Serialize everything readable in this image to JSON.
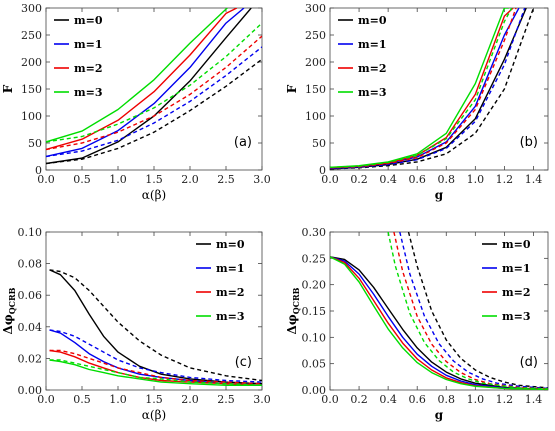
{
  "colors": {
    "m0": "#000000",
    "m1": "#0000ee",
    "m2": "#ee0000",
    "m3": "#00dd00"
  },
  "chart_data": [
    {
      "type": "line",
      "panel_label": "(a)",
      "xlabel": "α(β)",
      "ylabel": "F",
      "xlim": [
        0,
        3
      ],
      "ylim": [
        0,
        300
      ],
      "xticks": [
        "0.0",
        "0.5",
        "1.0",
        "1.5",
        "2.0",
        "2.5",
        "3.0"
      ],
      "yticks": [
        "0",
        "50",
        "100",
        "150",
        "200",
        "250",
        "300"
      ],
      "legend": {
        "placement": "top-left",
        "entries": [
          "m=0",
          "m=1",
          "m=2",
          "m=3"
        ]
      },
      "series": [
        {
          "name": "m=0",
          "dash": false,
          "x": [
            0,
            0.5,
            1.0,
            1.5,
            2.0,
            2.5,
            2.85
          ],
          "y": [
            12,
            22,
            52,
            100,
            165,
            245,
            300
          ]
        },
        {
          "name": "m=1",
          "dash": false,
          "x": [
            0,
            0.5,
            1.0,
            1.5,
            2.0,
            2.5,
            2.75
          ],
          "y": [
            25,
            40,
            73,
            123,
            190,
            272,
            300
          ]
        },
        {
          "name": "m=2",
          "dash": false,
          "x": [
            0,
            0.5,
            1.0,
            1.5,
            2.0,
            2.5,
            2.65
          ],
          "y": [
            38,
            57,
            92,
            145,
            213,
            290,
            300
          ]
        },
        {
          "name": "m=3",
          "dash": false,
          "x": [
            0,
            0.5,
            1.0,
            1.5,
            2.0,
            2.5,
            2.52
          ],
          "y": [
            52,
            72,
            112,
            167,
            235,
            298,
            300
          ]
        },
        {
          "name": "m=0",
          "dash": true,
          "x": [
            0,
            0.5,
            1.0,
            1.5,
            2.0,
            2.5,
            3.0
          ],
          "y": [
            12,
            20,
            40,
            70,
            110,
            155,
            205
          ]
        },
        {
          "name": "m=1",
          "dash": true,
          "x": [
            0,
            0.5,
            1.0,
            1.5,
            2.0,
            2.5,
            3.0
          ],
          "y": [
            25,
            35,
            55,
            87,
            127,
            175,
            228
          ]
        },
        {
          "name": "m=2",
          "dash": true,
          "x": [
            0,
            0.5,
            1.0,
            1.5,
            2.0,
            2.5,
            3.0
          ],
          "y": [
            38,
            50,
            70,
            100,
            140,
            190,
            248
          ]
        },
        {
          "name": "m=3",
          "dash": true,
          "x": [
            0,
            0.5,
            1.0,
            1.5,
            2.0,
            2.5,
            3.0
          ],
          "y": [
            52,
            62,
            85,
            115,
            157,
            210,
            272
          ]
        }
      ]
    },
    {
      "type": "line",
      "panel_label": "(b)",
      "xlabel": "g",
      "ylabel": "F",
      "xlim": [
        0,
        1.5
      ],
      "ylim": [
        0,
        300
      ],
      "xticks": [
        "0.0",
        "0.2",
        "0.4",
        "0.6",
        "0.8",
        "1.0",
        "1.2",
        "1.4"
      ],
      "yticks": [
        "0",
        "50",
        "100",
        "150",
        "200",
        "250",
        "300"
      ],
      "legend": {
        "placement": "top-left",
        "entries": [
          "m=0",
          "m=1",
          "m=2",
          "m=3"
        ]
      },
      "series": [
        {
          "name": "m=0",
          "dash": false,
          "x": [
            0,
            0.2,
            0.4,
            0.6,
            0.8,
            1.0,
            1.2,
            1.35
          ],
          "y": [
            2,
            5,
            10,
            20,
            42,
            95,
            205,
            300
          ]
        },
        {
          "name": "m=1",
          "dash": false,
          "x": [
            0,
            0.2,
            0.4,
            0.6,
            0.8,
            1.0,
            1.2,
            1.3
          ],
          "y": [
            3,
            6,
            12,
            24,
            52,
            118,
            250,
            300
          ]
        },
        {
          "name": "m=2",
          "dash": false,
          "x": [
            0,
            0.2,
            0.4,
            0.6,
            0.8,
            1.0,
            1.2,
            1.26
          ],
          "y": [
            4,
            7,
            13,
            27,
            60,
            140,
            285,
            300
          ]
        },
        {
          "name": "m=3",
          "dash": false,
          "x": [
            0,
            0.2,
            0.4,
            0.6,
            0.8,
            1.0,
            1.2,
            1.23
          ],
          "y": [
            5,
            8,
            15,
            30,
            68,
            160,
            300,
            300
          ]
        },
        {
          "name": "m=0",
          "dash": true,
          "x": [
            0,
            0.2,
            0.4,
            0.6,
            0.8,
            1.0,
            1.2,
            1.4
          ],
          "y": [
            2,
            4,
            8,
            15,
            30,
            68,
            150,
            300
          ]
        },
        {
          "name": "m=1",
          "dash": true,
          "x": [
            0,
            0.2,
            0.4,
            0.6,
            0.8,
            1.0,
            1.2,
            1.34
          ],
          "y": [
            3,
            5,
            10,
            19,
            40,
            90,
            195,
            300
          ]
        },
        {
          "name": "m=2",
          "dash": true,
          "x": [
            0,
            0.2,
            0.4,
            0.6,
            0.8,
            1.0,
            1.2,
            1.28
          ],
          "y": [
            4,
            6,
            12,
            23,
            50,
            112,
            240,
            300
          ]
        },
        {
          "name": "m=3",
          "dash": true,
          "x": [
            0,
            0.2,
            0.4,
            0.6,
            0.8,
            1.0,
            1.2,
            1.25
          ],
          "y": [
            5,
            7,
            14,
            27,
            58,
            130,
            275,
            300
          ]
        }
      ]
    },
    {
      "type": "line",
      "panel_label": "(c)",
      "xlabel": "α(β)",
      "ylabel": "Δφ",
      "ylabel_sub": "QCRB",
      "xlim": [
        0,
        3
      ],
      "ylim": [
        0,
        0.1
      ],
      "xticks": [
        "0.0",
        "0.5",
        "1.0",
        "1.5",
        "2.0",
        "2.5",
        "3.0"
      ],
      "yticks": [
        "0.00",
        "0.02",
        "0.04",
        "0.06",
        "0.08",
        "0.10"
      ],
      "legend": {
        "placement": "top-right",
        "entries": [
          "m=0",
          "m=1",
          "m=2",
          "m=3"
        ]
      },
      "series": [
        {
          "name": "m=0",
          "dash": false,
          "x": [
            0.05,
            0.2,
            0.4,
            0.6,
            0.8,
            1.0,
            1.3,
            1.6,
            2.0,
            2.5,
            3.0
          ],
          "y": [
            0.076,
            0.073,
            0.063,
            0.048,
            0.034,
            0.024,
            0.015,
            0.01,
            0.007,
            0.005,
            0.004
          ]
        },
        {
          "name": "m=1",
          "dash": false,
          "x": [
            0.05,
            0.2,
            0.4,
            0.6,
            0.8,
            1.0,
            1.3,
            1.6,
            2.0,
            2.5,
            3.0
          ],
          "y": [
            0.038,
            0.036,
            0.03,
            0.023,
            0.018,
            0.014,
            0.01,
            0.008,
            0.006,
            0.004,
            0.003
          ]
        },
        {
          "name": "m=2",
          "dash": false,
          "x": [
            0.05,
            0.2,
            0.4,
            0.6,
            0.8,
            1.0,
            1.3,
            1.6,
            2.0,
            2.5,
            3.0
          ],
          "y": [
            0.025,
            0.024,
            0.021,
            0.017,
            0.014,
            0.011,
            0.008,
            0.006,
            0.005,
            0.004,
            0.003
          ]
        },
        {
          "name": "m=3",
          "dash": false,
          "x": [
            0.05,
            0.2,
            0.4,
            0.6,
            0.8,
            1.0,
            1.3,
            1.6,
            2.0,
            2.5,
            3.0
          ],
          "y": [
            0.019,
            0.018,
            0.016,
            0.013,
            0.011,
            0.009,
            0.007,
            0.005,
            0.004,
            0.003,
            0.003
          ]
        },
        {
          "name": "m=0",
          "dash": true,
          "x": [
            0.05,
            0.2,
            0.4,
            0.6,
            0.8,
            1.0,
            1.3,
            1.6,
            2.0,
            2.5,
            3.0
          ],
          "y": [
            0.076,
            0.075,
            0.071,
            0.063,
            0.053,
            0.043,
            0.031,
            0.022,
            0.014,
            0.009,
            0.006
          ]
        },
        {
          "name": "m=1",
          "dash": true,
          "x": [
            0.05,
            0.2,
            0.4,
            0.6,
            0.8,
            1.0,
            1.3,
            1.6,
            2.0,
            2.5,
            3.0
          ],
          "y": [
            0.038,
            0.037,
            0.034,
            0.029,
            0.024,
            0.019,
            0.014,
            0.011,
            0.008,
            0.006,
            0.005
          ]
        },
        {
          "name": "m=2",
          "dash": true,
          "x": [
            0.05,
            0.2,
            0.4,
            0.6,
            0.8,
            1.0,
            1.3,
            1.6,
            2.0,
            2.5,
            3.0
          ],
          "y": [
            0.025,
            0.025,
            0.023,
            0.02,
            0.017,
            0.014,
            0.011,
            0.008,
            0.006,
            0.005,
            0.004
          ]
        },
        {
          "name": "m=3",
          "dash": true,
          "x": [
            0.05,
            0.2,
            0.4,
            0.6,
            0.8,
            1.0,
            1.3,
            1.6,
            2.0,
            2.5,
            3.0
          ],
          "y": [
            0.019,
            0.019,
            0.017,
            0.015,
            0.013,
            0.011,
            0.008,
            0.007,
            0.005,
            0.004,
            0.003
          ]
        }
      ]
    },
    {
      "type": "line",
      "panel_label": "(d)",
      "xlabel": "g",
      "ylabel": "Δφ",
      "ylabel_sub": "QCRB",
      "xlim": [
        0,
        1.5
      ],
      "ylim": [
        0,
        0.3
      ],
      "xticks": [
        "0.0",
        "0.2",
        "0.4",
        "0.6",
        "0.8",
        "1.0",
        "1.2",
        "1.4"
      ],
      "yticks": [
        "0.00",
        "0.05",
        "0.10",
        "0.15",
        "0.20",
        "0.25",
        "0.30"
      ],
      "legend": {
        "placement": "top-right",
        "entries": [
          "m=0",
          "m=1",
          "m=2",
          "m=3"
        ]
      },
      "series": [
        {
          "name": "m=0",
          "dash": false,
          "x": [
            0,
            0.1,
            0.2,
            0.3,
            0.4,
            0.5,
            0.6,
            0.7,
            0.8,
            0.9,
            1.0,
            1.2,
            1.5
          ],
          "y": [
            0.253,
            0.248,
            0.228,
            0.195,
            0.155,
            0.115,
            0.08,
            0.053,
            0.034,
            0.021,
            0.013,
            0.005,
            0.001
          ]
        },
        {
          "name": "m=1",
          "dash": false,
          "x": [
            0,
            0.1,
            0.2,
            0.3,
            0.4,
            0.5,
            0.6,
            0.7,
            0.8,
            0.9,
            1.0,
            1.2,
            1.5
          ],
          "y": [
            0.253,
            0.245,
            0.22,
            0.182,
            0.14,
            0.1,
            0.068,
            0.045,
            0.028,
            0.017,
            0.01,
            0.004,
            0.001
          ]
        },
        {
          "name": "m=2",
          "dash": false,
          "x": [
            0,
            0.1,
            0.2,
            0.3,
            0.4,
            0.5,
            0.6,
            0.7,
            0.8,
            0.9,
            1.0,
            1.2,
            1.5
          ],
          "y": [
            0.253,
            0.242,
            0.212,
            0.17,
            0.127,
            0.089,
            0.059,
            0.038,
            0.023,
            0.014,
            0.008,
            0.003,
            0.001
          ]
        },
        {
          "name": "m=3",
          "dash": false,
          "x": [
            0,
            0.1,
            0.2,
            0.3,
            0.4,
            0.5,
            0.6,
            0.7,
            0.8,
            0.9,
            1.0,
            1.2,
            1.5
          ],
          "y": [
            0.253,
            0.239,
            0.205,
            0.16,
            0.116,
            0.08,
            0.052,
            0.033,
            0.02,
            0.012,
            0.007,
            0.003,
            0.001
          ]
        },
        {
          "name": "m=0",
          "dash": true,
          "x": [
            0.54,
            0.6,
            0.7,
            0.8,
            0.9,
            1.0,
            1.1,
            1.2,
            1.3,
            1.5
          ],
          "y": [
            0.3,
            0.235,
            0.15,
            0.095,
            0.06,
            0.038,
            0.024,
            0.015,
            0.009,
            0.004
          ]
        },
        {
          "name": "m=1",
          "dash": true,
          "x": [
            0.48,
            0.55,
            0.65,
            0.75,
            0.85,
            0.95,
            1.05,
            1.15,
            1.3,
            1.5
          ],
          "y": [
            0.3,
            0.22,
            0.14,
            0.088,
            0.055,
            0.034,
            0.021,
            0.013,
            0.007,
            0.003
          ]
        },
        {
          "name": "m=2",
          "dash": true,
          "x": [
            0.44,
            0.5,
            0.6,
            0.7,
            0.8,
            0.9,
            1.0,
            1.1,
            1.3,
            1.5
          ],
          "y": [
            0.3,
            0.225,
            0.14,
            0.087,
            0.054,
            0.033,
            0.02,
            0.012,
            0.005,
            0.002
          ]
        },
        {
          "name": "m=3",
          "dash": true,
          "x": [
            0.4,
            0.45,
            0.55,
            0.65,
            0.75,
            0.85,
            0.95,
            1.05,
            1.3,
            1.5
          ],
          "y": [
            0.3,
            0.235,
            0.145,
            0.09,
            0.056,
            0.034,
            0.021,
            0.013,
            0.004,
            0.002
          ]
        }
      ]
    }
  ]
}
